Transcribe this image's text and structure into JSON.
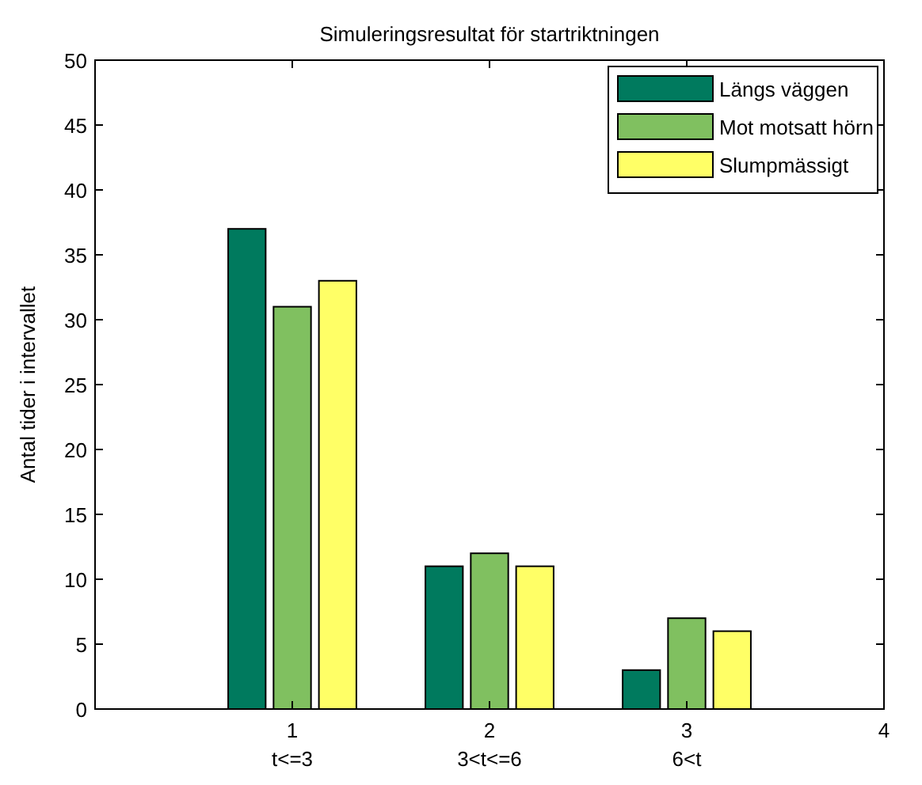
{
  "chart_data": {
    "type": "bar",
    "title": "Simuleringsresultat för startriktningen",
    "ylabel": "Antal tider i intervallet",
    "x": [
      1,
      2,
      3
    ],
    "xlim": [
      0,
      4
    ],
    "xticks": [
      1,
      2,
      3,
      4
    ],
    "annotations": [
      "t<=3",
      "3<t<=6",
      "6<t"
    ],
    "ylim": [
      0,
      50
    ],
    "yticks": [
      0,
      5,
      10,
      15,
      20,
      25,
      30,
      35,
      40,
      45,
      50
    ],
    "series": [
      {
        "name": "Längs väggen",
        "color": "#007a5e",
        "values": [
          37,
          11,
          3
        ]
      },
      {
        "name": "Mot motsatt hörn",
        "color": "#80c060",
        "values": [
          31,
          12,
          7
        ]
      },
      {
        "name": "Slumpmässigt",
        "color": "#ffff66",
        "values": [
          33,
          11,
          6
        ]
      }
    ],
    "legend": "top right",
    "grid": false
  }
}
